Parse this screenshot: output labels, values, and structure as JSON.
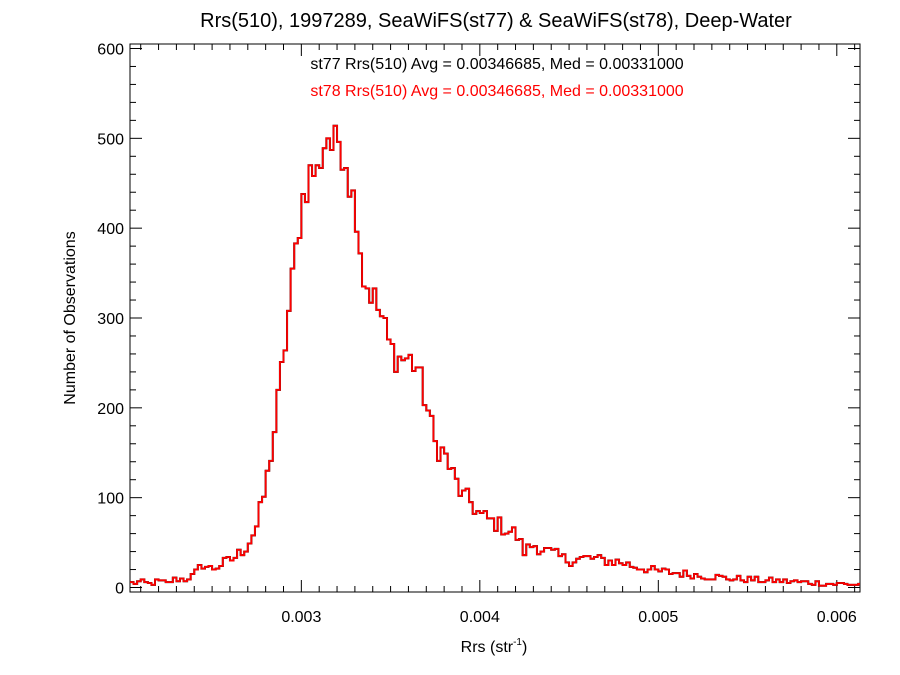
{
  "chart_data": {
    "type": "histogram",
    "title": "Rrs(510), 1997289, SeaWiFS(st77) & SeaWiFS(st78), Deep-Water",
    "xlabel_main": "Rrs (str",
    "xlabel_sup": "-1",
    "xlabel_close": ")",
    "ylabel": "Number of Observations",
    "xlim": [
      0.00204,
      0.00613
    ],
    "ylim": [
      -5,
      605
    ],
    "xticks": [
      0.003,
      0.004,
      0.005,
      0.006
    ],
    "xtick_labels": [
      "0.003",
      "0.004",
      "0.005",
      "0.006"
    ],
    "yticks": [
      0,
      100,
      200,
      300,
      400,
      500,
      600
    ],
    "ytick_labels": [
      "0",
      "100",
      "200",
      "300",
      "400",
      "500",
      "600"
    ],
    "annotations": [
      {
        "text": "st77 Rrs(510) Avg = 0.00346685, Med = 0.00331000",
        "color": "#000000"
      },
      {
        "text": "st78 Rrs(510) Avg = 0.00346685, Med = 0.00331000",
        "color": "#ff0000"
      }
    ],
    "series": [
      {
        "color": "#000000",
        "profile_ref": "shared"
      },
      {
        "color": "#ff0000",
        "profile_ref": "shared"
      }
    ],
    "bin_start": 0.00204,
    "bin_width": 2e-05,
    "profile": [
      [
        0.00204,
        5
      ],
      [
        0.0021,
        6
      ],
      [
        0.00215,
        4
      ],
      [
        0.0022,
        7
      ],
      [
        0.00225,
        5
      ],
      [
        0.0023,
        10
      ],
      [
        0.00235,
        9
      ],
      [
        0.0024,
        14
      ],
      [
        0.00245,
        26
      ],
      [
        0.0025,
        20
      ],
      [
        0.00255,
        26
      ],
      [
        0.0026,
        30
      ],
      [
        0.00265,
        37
      ],
      [
        0.0027,
        48
      ],
      [
        0.00275,
        68
      ],
      [
        0.0028,
        110
      ],
      [
        0.00285,
        175
      ],
      [
        0.0029,
        255
      ],
      [
        0.00295,
        340
      ],
      [
        0.003,
        425
      ],
      [
        0.00303,
        450
      ],
      [
        0.00306,
        465
      ],
      [
        0.00309,
        460
      ],
      [
        0.00312,
        490
      ],
      [
        0.00315,
        505
      ],
      [
        0.00318,
        485
      ],
      [
        0.00321,
        500
      ],
      [
        0.00325,
        480
      ],
      [
        0.00328,
        440
      ],
      [
        0.00331,
        420
      ],
      [
        0.00335,
        345
      ],
      [
        0.0034,
        325
      ],
      [
        0.00345,
        300
      ],
      [
        0.0035,
        265
      ],
      [
        0.00355,
        255
      ],
      [
        0.0036,
        255
      ],
      [
        0.00365,
        245
      ],
      [
        0.0037,
        205
      ],
      [
        0.00375,
        160
      ],
      [
        0.0038,
        150
      ],
      [
        0.00385,
        125
      ],
      [
        0.0039,
        103
      ],
      [
        0.00395,
        95
      ],
      [
        0.004,
        80
      ],
      [
        0.0041,
        70
      ],
      [
        0.0042,
        60
      ],
      [
        0.00425,
        40
      ],
      [
        0.0043,
        48
      ],
      [
        0.0044,
        38
      ],
      [
        0.0045,
        30
      ],
      [
        0.0046,
        33
      ],
      [
        0.0047,
        30
      ],
      [
        0.0048,
        28
      ],
      [
        0.0049,
        22
      ],
      [
        0.005,
        18
      ],
      [
        0.0052,
        14
      ],
      [
        0.0054,
        10
      ],
      [
        0.0056,
        8
      ],
      [
        0.0058,
        6
      ],
      [
        0.006,
        4
      ],
      [
        0.00613,
        3
      ]
    ]
  }
}
